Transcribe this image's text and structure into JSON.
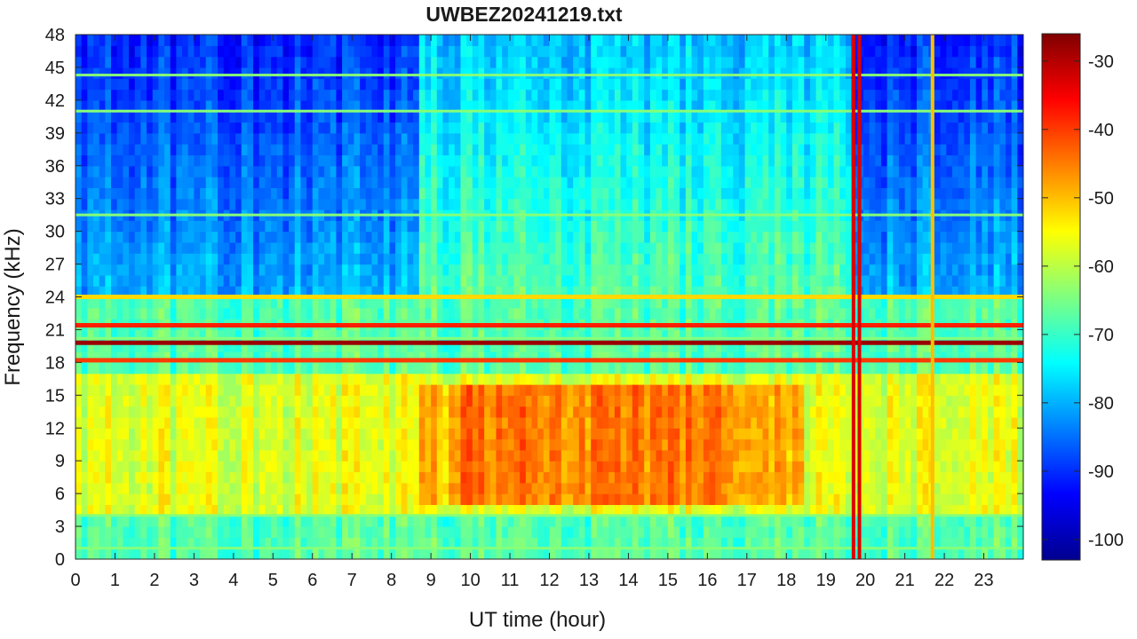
{
  "chart_data": {
    "type": "heatmap",
    "title": "UWBEZ20241219.txt",
    "xlabel": "UT time (hour)",
    "ylabel": "Frequency (kHz)",
    "xlim": [
      0,
      24
    ],
    "ylim": [
      0,
      48
    ],
    "xticks": [
      0,
      1,
      2,
      3,
      4,
      5,
      6,
      7,
      8,
      9,
      10,
      11,
      12,
      13,
      14,
      15,
      16,
      17,
      18,
      19,
      20,
      21,
      22,
      23
    ],
    "yticks": [
      0,
      3,
      6,
      9,
      12,
      15,
      18,
      21,
      24,
      27,
      30,
      33,
      36,
      39,
      42,
      45,
      48
    ],
    "colorbar": {
      "colormap": "jet",
      "clim": [
        -103,
        -26
      ],
      "ticks": [
        -30,
        -40,
        -50,
        -60,
        -70,
        -80,
        -90,
        -100
      ]
    },
    "features": {
      "strong_lines_khz": [
        19.8,
        21.4,
        18.2,
        24.0
      ],
      "weak_lines_khz": [
        44.3,
        41.0,
        31.5,
        20.2,
        4.0,
        1.0
      ],
      "broadband_enhancement": {
        "hours": [
          9.5,
          17.0
        ],
        "freq_khz": [
          5,
          16
        ],
        "level_db": -45
      },
      "vertical_spikes_hours": [
        19.7,
        19.85,
        21.7
      ]
    }
  }
}
